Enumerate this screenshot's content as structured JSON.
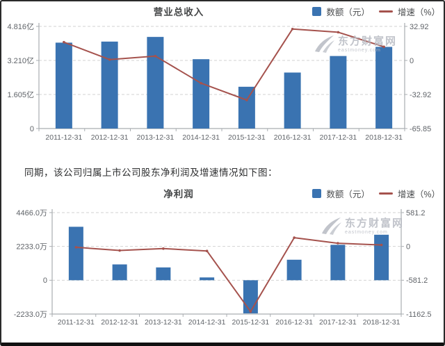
{
  "page": {
    "middle_text": "同期，该公司归属上市公司股东净利润及增速情况如下图："
  },
  "legend": {
    "amount_label": "数额（元）",
    "growth_label": "增速（%）"
  },
  "watermark": {
    "name": "东方财富网",
    "domain": "eastmoney.com"
  },
  "colors": {
    "bar": "#3a73b1",
    "line": "#a5524d",
    "grid": "#d2d2d2",
    "axis": "#a9adb1",
    "tick_text": "#5f6368",
    "title_text": "#454748",
    "watermark": "#b7bac2"
  },
  "chart_data": [
    {
      "type": "bar",
      "title": "营业总收入",
      "legend": [
        "数额（元）",
        "增速（%）"
      ],
      "legend_position": "top-right",
      "grid": true,
      "categories": [
        "2011-12-31",
        "2012-12-31",
        "2013-12-31",
        "2014-12-31",
        "2015-12-31",
        "2016-12-31",
        "2017-12-31",
        "2018-12-31"
      ],
      "series": [
        {
          "name": "数额（元）",
          "type": "bar",
          "unit": "亿",
          "values": [
            4.05,
            4.1,
            4.32,
            3.27,
            1.97,
            2.64,
            3.42,
            3.85
          ]
        },
        {
          "name": "增速（%）",
          "type": "line",
          "unit": "%",
          "values": [
            17.7,
            0.9,
            4.2,
            -22.0,
            -38.3,
            30.4,
            27.3,
            13.2
          ]
        }
      ],
      "left_axis": {
        "tick_labels": [
          "4.816亿",
          "3.210亿",
          "1.605亿",
          "0"
        ],
        "tick_values": [
          4.816,
          3.21,
          1.605,
          0
        ],
        "max": 4.816,
        "min": 0,
        "unit": "亿"
      },
      "right_axis": {
        "tick_labels": [
          "32.92",
          "0",
          "-32.92",
          "-65.85"
        ],
        "tick_values": [
          32.92,
          0,
          -32.92,
          -65.85
        ],
        "max": 32.92,
        "min": -65.85,
        "unit": "%"
      }
    },
    {
      "type": "bar",
      "title": "净利润",
      "legend": [
        "数额（元）",
        "增速（%）"
      ],
      "legend_position": "top-right",
      "grid": true,
      "categories": [
        "2011-12-31",
        "2012-12-31",
        "2013-12-31",
        "2014-12-31",
        "2015-12-31",
        "2016-12-31",
        "2017-12-31",
        "2018-12-31"
      ],
      "series": [
        {
          "name": "数额（元）",
          "type": "bar",
          "unit": "万",
          "values": [
            3530,
            1045,
            846,
            185,
            -2190,
            1354,
            2339,
            3005
          ]
        },
        {
          "name": "增速（%）",
          "type": "line",
          "unit": "%",
          "values": [
            -15,
            -70,
            -38,
            -78,
            -1120,
            150,
            55,
            25
          ]
        }
      ],
      "left_axis": {
        "tick_labels": [
          "4466.0万",
          "2233.0万",
          "0",
          "-2233.0万"
        ],
        "tick_values": [
          4466,
          2233,
          0,
          -2233
        ],
        "max": 4466,
        "min": -2233,
        "unit": "万"
      },
      "right_axis": {
        "tick_labels": [
          "581.2",
          "0",
          "-581.2",
          "-1162.5"
        ],
        "tick_values": [
          581.2,
          0,
          -581.2,
          -1162.5
        ],
        "max": 581.2,
        "min": -1162.5,
        "unit": "%"
      }
    }
  ]
}
